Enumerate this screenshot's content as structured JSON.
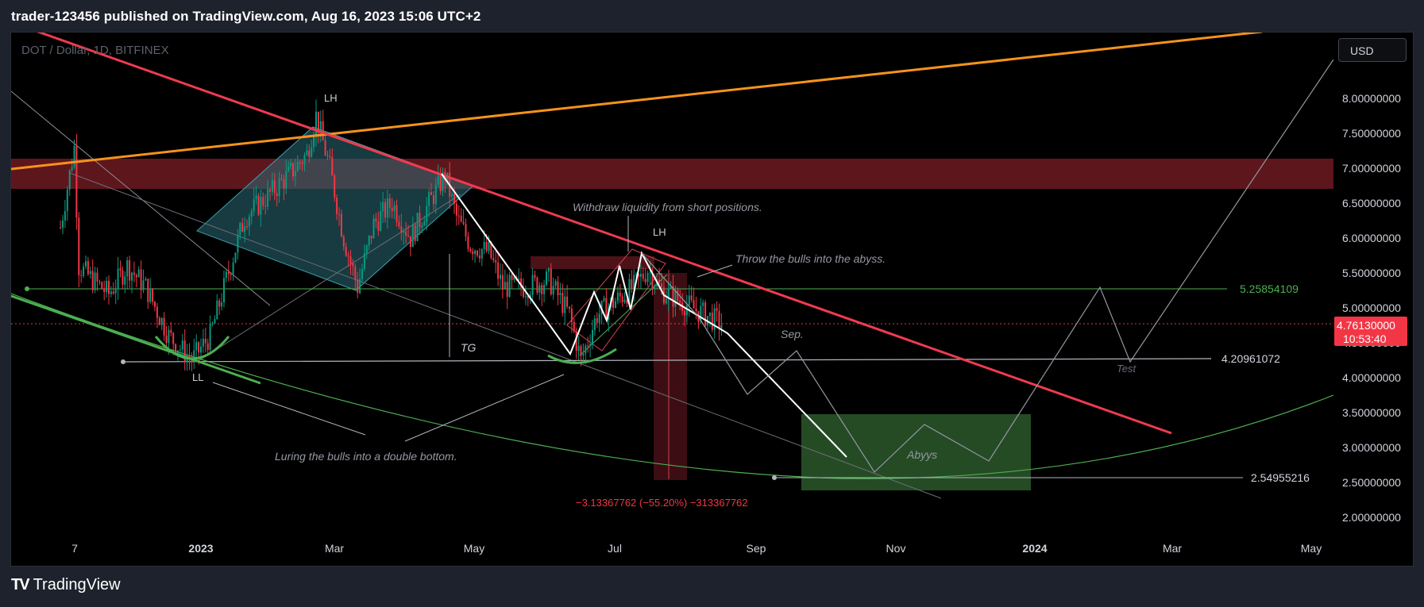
{
  "header": {
    "publish_line": "trader-123456 published on TradingView.com, Aug 16, 2023 15:06 UTC+2"
  },
  "symbol_legend": "DOT / Dollar, 1D, BITFINEX",
  "currency_button": "USD",
  "footer": {
    "logo_mark": "TV",
    "brand": "TradingView"
  },
  "colors": {
    "background": "#000000",
    "frame": "#1e222d",
    "resistance_line": "#ef3b4f",
    "trend_orange": "#f7931a",
    "support_green": "#4caf50",
    "zone_red": "#6e1a22",
    "zone_green": "#2e5e2e",
    "wedge_teal": "#2a6b74",
    "price_tag": "#f23645"
  },
  "chart_data": {
    "type": "candlestick",
    "symbol": "DOT / Dollar",
    "interval": "1D",
    "exchange": "BITFINEX",
    "currency": "USD",
    "x_tick_labels": [
      "7",
      "2023",
      "Mar",
      "May",
      "Jul",
      "Sep",
      "Nov",
      "2024",
      "Mar",
      "May"
    ],
    "y_tick_labels": [
      "8.00000000",
      "7.50000000",
      "7.00000000",
      "6.50000000",
      "6.00000000",
      "5.50000000",
      "5.00000000",
      "4.50000000",
      "4.00000000",
      "3.50000000",
      "3.00000000",
      "2.50000000",
      "2.00000000"
    ],
    "ylim": [
      1.6,
      8.6
    ],
    "current_price": "4.76130000",
    "countdown": "10:53:40",
    "levels": [
      {
        "label": "5.25854109",
        "value": 5.25854109,
        "color": "#4caf50"
      },
      {
        "label": "4.20961072",
        "value": 4.20961072,
        "color": "#b2b5be"
      },
      {
        "label": "2.54955216",
        "value": 2.54955216,
        "color": "#b2b5be"
      }
    ],
    "price_path": [
      {
        "x": "2022-11-01",
        "y": 6.15
      },
      {
        "x": "2022-11-07",
        "y": 7.3
      },
      {
        "x": "2022-11-09",
        "y": 5.6
      },
      {
        "x": "2022-11-15",
        "y": 5.4
      },
      {
        "x": "2022-11-22",
        "y": 5.2
      },
      {
        "x": "2022-11-30",
        "y": 5.6
      },
      {
        "x": "2022-12-08",
        "y": 5.3
      },
      {
        "x": "2022-12-18",
        "y": 4.6
      },
      {
        "x": "2022-12-28",
        "y": 4.25
      },
      {
        "x": "2023-01-05",
        "y": 4.6
      },
      {
        "x": "2023-01-12",
        "y": 5.4
      },
      {
        "x": "2023-01-20",
        "y": 6.3
      },
      {
        "x": "2023-01-30",
        "y": 6.6
      },
      {
        "x": "2023-02-08",
        "y": 6.9
      },
      {
        "x": "2023-02-16",
        "y": 7.2
      },
      {
        "x": "2023-02-20",
        "y": 7.75
      },
      {
        "x": "2023-02-26",
        "y": 7.0
      },
      {
        "x": "2023-03-04",
        "y": 6.0
      },
      {
        "x": "2023-03-10",
        "y": 5.3
      },
      {
        "x": "2023-03-17",
        "y": 6.2
      },
      {
        "x": "2023-03-25",
        "y": 6.5
      },
      {
        "x": "2023-04-02",
        "y": 6.0
      },
      {
        "x": "2023-04-10",
        "y": 6.5
      },
      {
        "x": "2023-04-17",
        "y": 6.9
      },
      {
        "x": "2023-04-22",
        "y": 6.3
      },
      {
        "x": "2023-04-28",
        "y": 5.9
      },
      {
        "x": "2023-05-06",
        "y": 5.8
      },
      {
        "x": "2023-05-12",
        "y": 5.3
      },
      {
        "x": "2023-05-22",
        "y": 5.3
      },
      {
        "x": "2023-06-01",
        "y": 5.4
      },
      {
        "x": "2023-06-10",
        "y": 4.9
      },
      {
        "x": "2023-06-15",
        "y": 4.25
      },
      {
        "x": "2023-06-22",
        "y": 4.9
      },
      {
        "x": "2023-06-30",
        "y": 5.1
      },
      {
        "x": "2023-07-08",
        "y": 5.3
      },
      {
        "x": "2023-07-14",
        "y": 5.55
      },
      {
        "x": "2023-07-20",
        "y": 5.25
      },
      {
        "x": "2023-07-28",
        "y": 5.1
      },
      {
        "x": "2023-08-05",
        "y": 4.95
      },
      {
        "x": "2023-08-16",
        "y": 4.76
      }
    ],
    "annotations": [
      {
        "text": "LH"
      },
      {
        "text": "LH"
      },
      {
        "text": "LL"
      },
      {
        "text": "TG"
      },
      {
        "text": "Withdraw liquidity from short positions."
      },
      {
        "text": "Throw the bulls into the abyss."
      },
      {
        "text": "Luring the bulls into a double bottom."
      },
      {
        "text": "Sep."
      },
      {
        "text": "Abyys"
      },
      {
        "text": "Test"
      }
    ],
    "measure_label": "−3.13367762 (−55.20%) −313367762"
  }
}
